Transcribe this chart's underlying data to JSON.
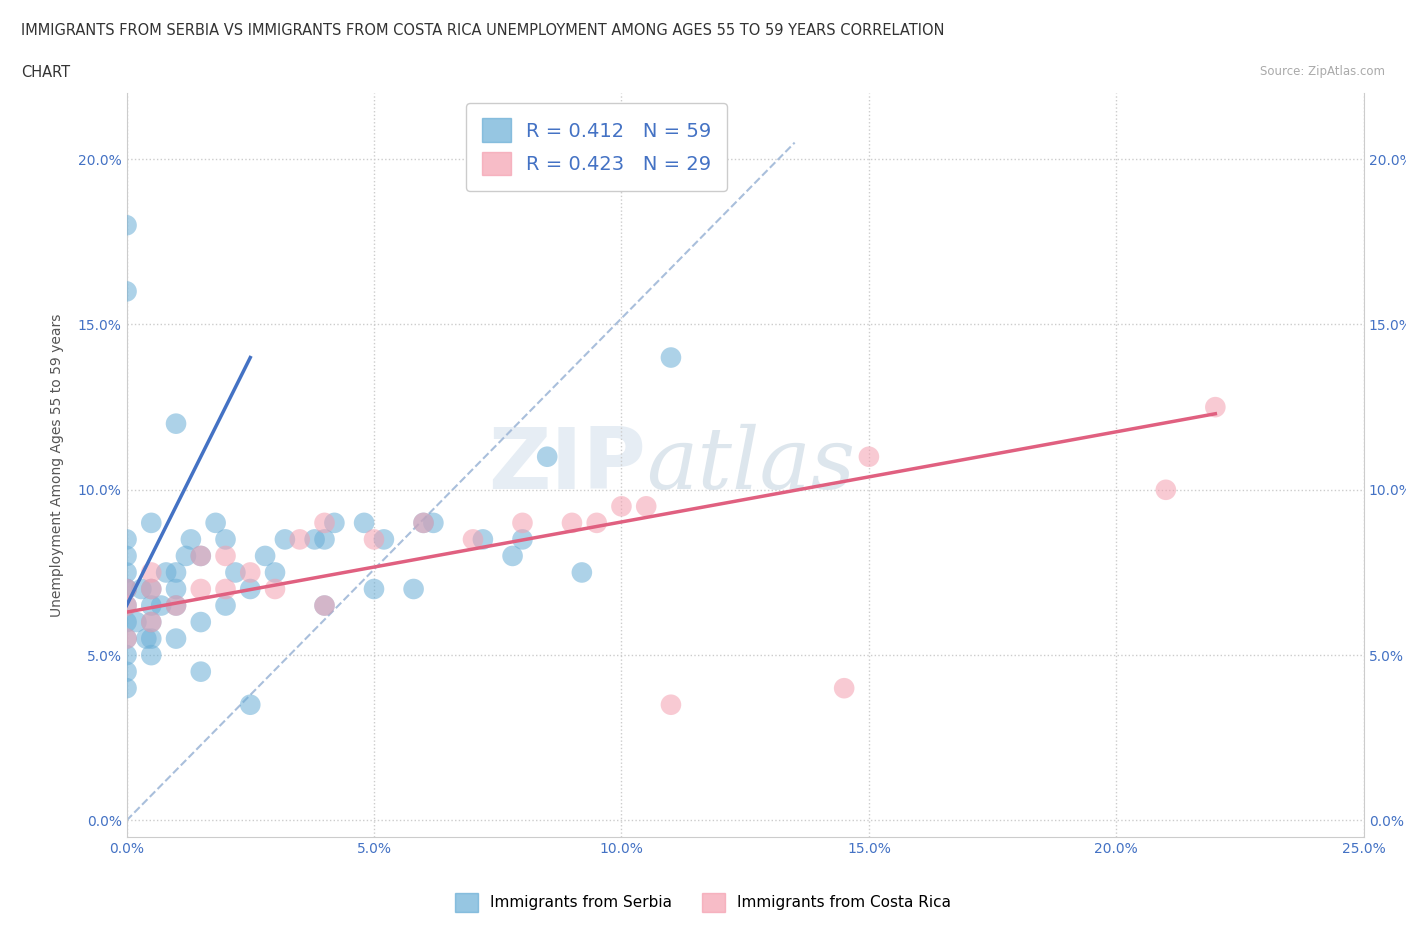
{
  "title_line1": "IMMIGRANTS FROM SERBIA VS IMMIGRANTS FROM COSTA RICA UNEMPLOYMENT AMONG AGES 55 TO 59 YEARS CORRELATION",
  "title_line2": "CHART",
  "source": "Source: ZipAtlas.com",
  "ylabel": "Unemployment Among Ages 55 to 59 years",
  "xlim": [
    0.0,
    0.25
  ],
  "ylim": [
    0.0,
    0.215
  ],
  "xticks": [
    0.0,
    0.05,
    0.1,
    0.15,
    0.2,
    0.25
  ],
  "yticks": [
    0.0,
    0.05,
    0.1,
    0.15,
    0.2
  ],
  "serbia_color": "#6aaed6",
  "costa_rica_color": "#f4a0b0",
  "serbia_R": 0.412,
  "serbia_N": 59,
  "costa_rica_R": 0.423,
  "costa_rica_N": 29,
  "serbia_x": [
    0.0,
    0.0,
    0.0,
    0.0,
    0.0,
    0.0,
    0.0,
    0.0,
    0.0,
    0.0,
    0.005,
    0.005,
    0.005,
    0.005,
    0.005,
    0.01,
    0.01,
    0.01,
    0.01,
    0.015,
    0.015,
    0.02,
    0.02,
    0.025,
    0.03,
    0.04,
    0.04,
    0.05,
    0.06,
    0.08,
    0.01,
    0.005,
    0.0,
    0.0,
    0.0,
    0.002,
    0.003,
    0.004,
    0.007,
    0.008,
    0.012,
    0.013,
    0.018,
    0.022,
    0.028,
    0.032,
    0.038,
    0.042,
    0.048,
    0.052,
    0.058,
    0.062,
    0.072,
    0.078,
    0.085,
    0.092,
    0.11,
    0.015,
    0.025
  ],
  "serbia_y": [
    0.05,
    0.055,
    0.06,
    0.065,
    0.07,
    0.07,
    0.075,
    0.08,
    0.045,
    0.085,
    0.05,
    0.055,
    0.06,
    0.065,
    0.07,
    0.055,
    0.065,
    0.07,
    0.075,
    0.06,
    0.08,
    0.065,
    0.085,
    0.07,
    0.075,
    0.065,
    0.085,
    0.07,
    0.09,
    0.085,
    0.12,
    0.09,
    0.16,
    0.18,
    0.04,
    0.06,
    0.07,
    0.055,
    0.065,
    0.075,
    0.08,
    0.085,
    0.09,
    0.075,
    0.08,
    0.085,
    0.085,
    0.09,
    0.09,
    0.085,
    0.07,
    0.09,
    0.085,
    0.08,
    0.11,
    0.075,
    0.14,
    0.045,
    0.035
  ],
  "costa_rica_x": [
    0.0,
    0.0,
    0.0,
    0.005,
    0.005,
    0.005,
    0.01,
    0.015,
    0.015,
    0.02,
    0.02,
    0.025,
    0.03,
    0.035,
    0.04,
    0.04,
    0.05,
    0.06,
    0.07,
    0.08,
    0.09,
    0.095,
    0.1,
    0.105,
    0.11,
    0.145,
    0.15,
    0.21,
    0.22
  ],
  "costa_rica_y": [
    0.055,
    0.065,
    0.07,
    0.06,
    0.07,
    0.075,
    0.065,
    0.07,
    0.08,
    0.07,
    0.08,
    0.075,
    0.07,
    0.085,
    0.065,
    0.09,
    0.085,
    0.09,
    0.085,
    0.09,
    0.09,
    0.09,
    0.095,
    0.095,
    0.035,
    0.04,
    0.11,
    0.1,
    0.125
  ],
  "watermark_zip": "ZIP",
  "watermark_atlas": "atlas",
  "background_color": "#ffffff",
  "grid_color": "#cccccc",
  "legend_text_color": "#4472c4",
  "serbia_trend_color": "#4472c4",
  "costa_rica_trend_color": "#e06080",
  "diagonal_color": "#a0b8d8",
  "serbia_trend_x": [
    0.0,
    0.025
  ],
  "serbia_trend_y": [
    0.065,
    0.14
  ],
  "costa_rica_trend_x": [
    0.0,
    0.22
  ],
  "costa_rica_trend_y": [
    0.063,
    0.123
  ]
}
